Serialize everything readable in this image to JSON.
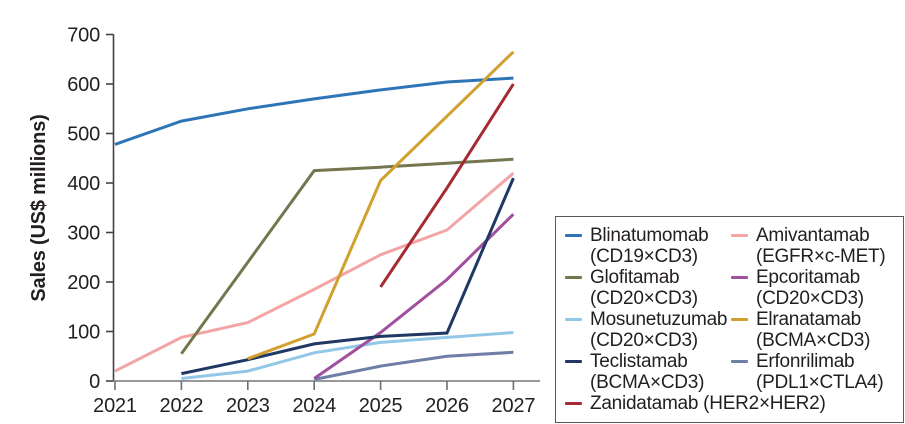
{
  "chart_data": {
    "type": "line",
    "title": "",
    "xlabel": "",
    "ylabel": "Sales (US$ millions)",
    "x_ticks": [
      2021,
      2022,
      2023,
      2024,
      2025,
      2026,
      2027
    ],
    "ylim": [
      0,
      700
    ],
    "y_tick_step": 100,
    "grid": false,
    "legend_position": "right",
    "series": [
      {
        "name": "Blinatumomab",
        "target": "(CD19×CD3)",
        "color": "#2e75b8",
        "legend_column": 1,
        "points": [
          [
            2021,
            478
          ],
          [
            2022,
            525
          ],
          [
            2023,
            550
          ],
          [
            2024,
            570
          ],
          [
            2025,
            588
          ],
          [
            2026,
            604
          ],
          [
            2027,
            612
          ]
        ]
      },
      {
        "name": "Glofitamab",
        "target": "(CD20×CD3)",
        "color": "#757550",
        "legend_column": 1,
        "points": [
          [
            2022,
            55
          ],
          [
            2023,
            240
          ],
          [
            2024,
            425
          ],
          [
            2025,
            432
          ],
          [
            2026,
            440
          ],
          [
            2027,
            448
          ]
        ]
      },
      {
        "name": "Mosunetuzumab",
        "target": "(CD20×CD3)",
        "color": "#92c7e8",
        "legend_column": 1,
        "points": [
          [
            2022,
            5
          ],
          [
            2023,
            20
          ],
          [
            2024,
            57
          ],
          [
            2025,
            78
          ],
          [
            2026,
            88
          ],
          [
            2027,
            98
          ]
        ]
      },
      {
        "name": "Teclistamab",
        "target": "(BCMA×CD3)",
        "color": "#1f3864",
        "legend_column": 1,
        "points": [
          [
            2022,
            15
          ],
          [
            2023,
            43
          ],
          [
            2024,
            75
          ],
          [
            2025,
            90
          ],
          [
            2026,
            97
          ],
          [
            2027,
            410
          ]
        ]
      },
      {
        "name": "Zanidatamab",
        "target": "(HER2×HER2)",
        "color": "#a52a32",
        "legend_column": "full",
        "points": [
          [
            2025,
            190
          ],
          [
            2026,
            390
          ],
          [
            2027,
            600
          ]
        ]
      },
      {
        "name": "Amivantamab",
        "target": "(EGFR×c-MET)",
        "color": "#f3a5a5",
        "legend_column": 2,
        "points": [
          [
            2021,
            20
          ],
          [
            2022,
            88
          ],
          [
            2023,
            118
          ],
          [
            2024,
            185
          ],
          [
            2025,
            255
          ],
          [
            2026,
            305
          ],
          [
            2027,
            420
          ]
        ]
      },
      {
        "name": "Epcoritamab",
        "target": "(CD20×CD3)",
        "color": "#a0509f",
        "legend_column": 2,
        "points": [
          [
            2024,
            5
          ],
          [
            2025,
            98
          ],
          [
            2026,
            205
          ],
          [
            2027,
            337
          ]
        ]
      },
      {
        "name": "Elranatamab",
        "target": "(BCMA×CD3)",
        "color": "#d2a02f",
        "legend_column": 2,
        "points": [
          [
            2023,
            45
          ],
          [
            2024,
            95
          ],
          [
            2025,
            405
          ],
          [
            2026,
            535
          ],
          [
            2027,
            665
          ]
        ]
      },
      {
        "name": "Erfonrilimab",
        "target": "(PDL1×CTLA4)",
        "color": "#6e7ea6",
        "legend_column": 2,
        "points": [
          [
            2024,
            3
          ],
          [
            2025,
            30
          ],
          [
            2026,
            50
          ],
          [
            2027,
            58
          ]
        ]
      }
    ],
    "draw_order": [
      "Mosunetuzumab",
      "Erfonrilimab",
      "Amivantamab",
      "Glofitamab",
      "Blinatumomab",
      "Epcoritamab",
      "Teclistamab",
      "Zanidatamab",
      "Elranatamab"
    ]
  }
}
